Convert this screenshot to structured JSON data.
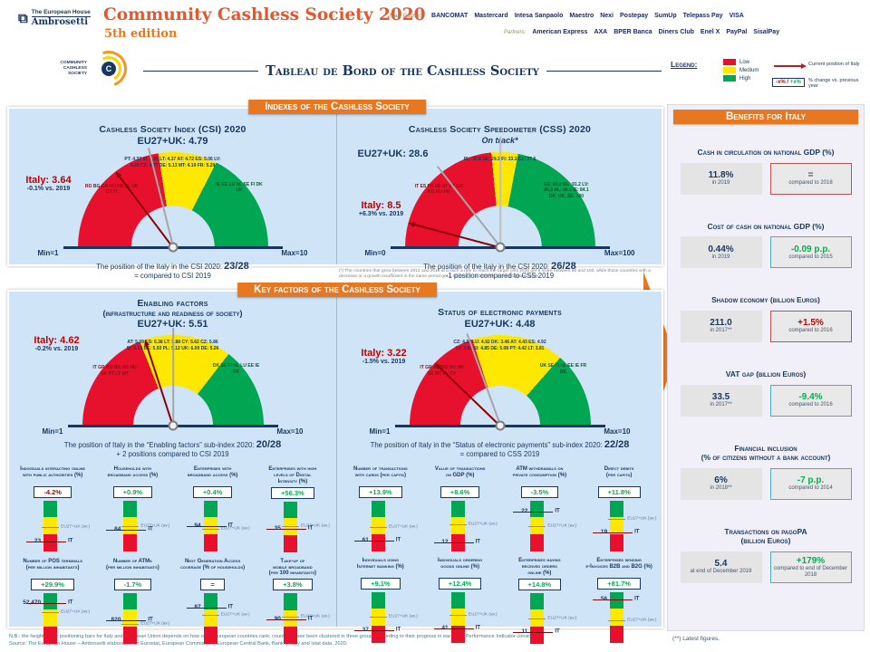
{
  "header": {
    "eha_line1": "The European House",
    "eha_line2": "Ambrosetti",
    "title": "Community Cashless Society 2020",
    "edition": "5th edition",
    "main_partners_label": "Main Partners:",
    "main_partners": [
      "BANCOMAT",
      "Mastercard",
      "Intesa Sanpaolo",
      "Maestro",
      "Nexi",
      "Postepay",
      "SumUp",
      "Telepass Pay",
      "VISA"
    ],
    "partners_label": "Partners:",
    "partners": [
      "American Express",
      "AXA",
      "BPER Banca",
      "Diners Club",
      "Enel X",
      "PayPal",
      "SisalPay"
    ],
    "ccs_logo_text": "Community Cashless Society",
    "ccs_logo_letter": "C",
    "banner": "Tableau de Bord of the Cashless Society"
  },
  "legend": {
    "title": "Legend:",
    "items": [
      {
        "label": "Low",
        "color": "#E8112D"
      },
      {
        "label": "Medium",
        "color": "#FFE800"
      },
      {
        "label": "High",
        "color": "#00A651"
      }
    ],
    "arrow_label": "Current position of Italy",
    "change_neg": "-x%",
    "change_sep": " / ",
    "change_pos": "+x%",
    "change_label": "% change vs. previous year"
  },
  "sections": {
    "indexes_title": "Indexes of the Cashless Society",
    "keyfactors_title": "Key factors of the Cashless Society",
    "benefits_title": "Benefits for Italy"
  },
  "colors": {
    "red": "#E8112D",
    "yellow": "#FFE800",
    "green": "#00A651",
    "navy": "#17375E",
    "italy_red": "#C00000",
    "pos_green": "#00B050",
    "orange": "#E87722"
  },
  "gauges": {
    "csi": {
      "t1": "Cashless Society Index (CSI) 2020",
      "t2": "",
      "eu_label": "EU27+UK: 4.79",
      "italy_label": "Italy: 3.64",
      "italy_change": "-0.1% vs. 2019",
      "min": "Min=1",
      "max": "Max=10",
      "pos_text": "The position of the Italy in the CSI 2020:",
      "pos_rank": "23/28",
      "cmp_text": "= compared to CSI 2019",
      "italy_rot": -127,
      "eu_rot": -104,
      "seg": {
        "red": 0.45,
        "yellow": 0.2,
        "green": 0.35
      },
      "labels": {
        "yellow": [
          "PT: 4.37",
          "SI: 4.95",
          "LT: 4.37",
          "AT: 4.72",
          "ES: 5.06",
          "LV: 4.29",
          "CZ: 4.77",
          "DE: 5.13",
          "MT: 4.19",
          "FR: 5.29"
        ],
        "red": [
          "RO",
          "BG",
          "GR",
          "HU",
          "HR",
          "PL",
          "SK",
          "CY",
          "IT"
        ],
        "green": [
          "IE",
          "EE",
          "LU",
          "NL",
          "SE",
          "FI",
          "DK",
          "UK"
        ]
      }
    },
    "css": {
      "t1": "Cashless Society Speedometer (CSS) 2020",
      "t2": "",
      "on_track": "On track*",
      "eu_label": "EU27+UK: 28.6",
      "italy_label": "Italy: 8.5",
      "italy_change": "+6.3% vs. 2019",
      "min": "Min=0",
      "max": "Max=100",
      "pos_text": "The position of the Italy in the CSI 2020:",
      "pos_rank": "26/28",
      "cmp_text": "-1 position compared to CSS 2019",
      "italy_rot": -165,
      "eu_rot": -128,
      "track_rot": -90,
      "seg": {
        "red": 0.47,
        "yellow": 0.09,
        "green": 0.44
      },
      "labels": {
        "yellow": [
          "PL: 30.8",
          "SE: 29.3",
          "FI: 33.3",
          "CZ: 37.6"
        ],
        "red": [
          "IT",
          "ES",
          "FR",
          "DE",
          "AT",
          "PT",
          "GR",
          "RO",
          "HU",
          "HR"
        ],
        "green": [
          "EE: 80.2",
          "BE: 91.2",
          "LV: 86.3",
          "NL: 86.4",
          "IE: 84.1",
          "DK, UK, SE: 100"
        ]
      }
    },
    "enabling": {
      "t1": "Enabling factors",
      "t2": "(infrastructure and readiness of society)",
      "eu_label": "EU27+UK: 5.51",
      "italy_label": "Italy: 4.62",
      "italy_change": "-0.2% vs. 2019",
      "min": "Min=1",
      "max": "Max=10",
      "pos_text": "The position of Italy in the “Enabling factors” sub-index 2020:",
      "pos_rank": "20/28",
      "cmp_text": "+ 2 positions compared to CSI 2019",
      "italy_rot": -108,
      "eu_rot": -90,
      "seg": {
        "red": 0.38,
        "yellow": 0.33,
        "green": 0.29
      },
      "labels": {
        "yellow": [
          "AT: 5.39",
          "ES: 5.38",
          "LT: 5.88",
          "CY: 5.62",
          "CZ: 5.86",
          "SI: 5.19",
          "BE: 5.93",
          "PL: 5.12",
          "UK: 6.00",
          "DE: 5.26"
        ],
        "red": [
          "IT",
          "GR",
          "RO",
          "BG",
          "HR",
          "HU",
          "SK",
          "PT",
          "LV",
          "MT"
        ],
        "green": [
          "DK",
          "SE",
          "FI",
          "NL",
          "LU",
          "EE",
          "IE",
          "FR"
        ]
      }
    },
    "payments": {
      "t1": "Status of electronic payments",
      "t2": "",
      "eu_label": "EU27+UK: 4.48",
      "italy_label": "Italy: 3.22",
      "italy_change": "-1.5% vs. 2019",
      "min": "Min=1",
      "max": "Max=10",
      "pos_text": "The position of Italy in the “Status of electronic payments” sub-index 2020:",
      "pos_rank": "22/28",
      "cmp_text": "= compared to CSS 2019",
      "italy_rot": -136,
      "eu_rot": -110,
      "seg": {
        "red": 0.4,
        "yellow": 0.33,
        "green": 0.27
      },
      "labels": {
        "yellow": [
          "CZ: 4.35",
          "LU: 4.92",
          "DK: 3.46",
          "AT: 4.43",
          "ES: 4.92",
          "LV: 3.82",
          "SI: 4.85",
          "DE: 5.08",
          "PT: 4.42",
          "LT: 3.81"
        ],
        "red": [
          "IT",
          "GR",
          "RO",
          "BG",
          "HU",
          "HR",
          "SK",
          "MT",
          "PL",
          "CY"
        ],
        "green": [
          "UK",
          "SE",
          "FI",
          "NL",
          "EE",
          "IE",
          "FR",
          "BE"
        ]
      }
    }
  },
  "kpis": {
    "eu_label": "EU27+UK (av.)",
    "it_label": "IT",
    "left": [
      {
        "t": [
          "Individuals interacting online",
          "with public authorities (%)"
        ],
        "c": "-4.2%",
        "cc": "red",
        "it": "23",
        "ip": 80,
        "ep": 52
      },
      {
        "t": [
          "Households with",
          "broadband access (%)"
        ],
        "c": "+0.9%",
        "cc": "green",
        "it": "84",
        "ip": 58,
        "ep": 50
      },
      {
        "t": [
          "Enterprises with",
          "broadband access (%)"
        ],
        "c": "+0.4%",
        "cc": "green",
        "it": "94",
        "ip": 50,
        "ep": 56
      },
      {
        "t": [
          "Enterprises with high",
          "levels of Digital",
          "Intensity (%)"
        ],
        "c": "+56.3%",
        "cc": "green",
        "it": "35",
        "ip": 55,
        "ep": 48
      },
      {
        "t": [
          "Number of POS terminals",
          "(per million inhabitants)"
        ],
        "c": "+29.9%",
        "cc": "green",
        "it": "52,470",
        "ip": 20,
        "ep": 38
      },
      {
        "t": [
          "Number of ATMs",
          "(per million inhabitants)"
        ],
        "c": "-1.7%",
        "cc": "green",
        "it": "820",
        "ip": 55,
        "ep": 62
      },
      {
        "t": [
          "Next Generation Access",
          "coverage (% of households)"
        ],
        "c": "=",
        "cc": "navy",
        "it": "87",
        "ip": 30,
        "ep": 44
      },
      {
        "t": [
          "Take-up of",
          "mobile broadband",
          "(per 100 inhabitants)"
        ],
        "c": "+3.8%",
        "cc": "green",
        "it": "90",
        "ip": 52,
        "ep": 46
      }
    ],
    "right": [
      {
        "t": [
          "Number of transactions",
          "with cards (per capita)"
        ],
        "c": "+13.9%",
        "cc": "green",
        "it": "61",
        "ip": 78,
        "ep": 52
      },
      {
        "t": [
          "Value of transactions",
          "on GDP (%)"
        ],
        "c": "+8.6%",
        "cc": "green",
        "it": "12",
        "ip": 82,
        "ep": 46
      },
      {
        "t": [
          "ATM withdrawals on",
          "private consumption (%)"
        ],
        "c": "-3.5%",
        "cc": "green",
        "it": "22",
        "ip": 22,
        "ep": 50
      },
      {
        "t": [
          "Direct debits",
          "(per capita)"
        ],
        "c": "+11.8%",
        "cc": "green",
        "it": "19",
        "ip": 62,
        "ep": 36
      },
      {
        "t": [
          "Individuals using",
          "Internet banking (%)"
        ],
        "c": "+9.1%",
        "cc": "green",
        "it": "37",
        "ip": 75,
        "ep": 48
      },
      {
        "t": [
          "Individuals ordering",
          "goods online (%)"
        ],
        "c": "+12.4%",
        "cc": "green",
        "it": "41",
        "ip": 72,
        "ep": 45
      },
      {
        "t": [
          "Enterprises having",
          "received orders",
          "online (%)"
        ],
        "c": "+14.8%",
        "cc": "green",
        "it": "11",
        "ip": 78,
        "ep": 50
      },
      {
        "t": [
          "Enterprises sending",
          "e-Invoices B2B and B2G (%)"
        ],
        "c": "+81.7%",
        "cc": "green",
        "it": "56",
        "ip": 15,
        "ep": 55
      }
    ]
  },
  "benefits": {
    "items": [
      {
        "title": "Cash in circulation on national GDP (%)",
        "title2": "",
        "v": "11.8%",
        "vs": "in 2019",
        "d": "=",
        "ds": "compared to 2018",
        "dcol": "#44546A",
        "dbor": "#C0504D"
      },
      {
        "title": "Cost of cash on national GDP (%)",
        "title2": "",
        "v": "0.44%",
        "vs": "in 2019",
        "d": "-0.09 p.p.",
        "ds": "compared to 2015",
        "dcol": "#00B050",
        "dbor": "#4BACC6"
      },
      {
        "title": "Shadow economy (billion Euros)",
        "title2": "",
        "v": "211.0",
        "vs": "in 2017**",
        "d": "+1.5%",
        "ds": "compared to 2016",
        "dcol": "#C00000",
        "dbor": "#C0504D"
      },
      {
        "title": "VAT gap (billion Euros)",
        "title2": "",
        "v": "33.5",
        "vs": "in 2017**",
        "d": "-9.4%",
        "ds": "compared to 2016",
        "dcol": "#00B050",
        "dbor": "#4BACC6"
      },
      {
        "title": "Financial inclusion",
        "title2": "(% of citizens without a bank account)",
        "v": "6%",
        "vs": "in 2018**",
        "d": "-7 p.p.",
        "ds": "compared to 2014",
        "dcol": "#00B050",
        "dbor": "#4BACC6"
      },
      {
        "title": "Transactions on pagoPA",
        "title2": "(billion Euros)",
        "v": "5.4",
        "vs": "at end of December 2019",
        "d": "+179%",
        "ds": "compared to end of December 2018",
        "dcol": "#00B050",
        "dbor": "#4BACC6"
      }
    ],
    "footnote": "(**) Latest figures."
  },
  "footnotes": {
    "css_star": "(*) The countries that grew between 2012 and 2016 at a such a rate to reach the target until 2025 get a score between 50 and 100, while those countries with a decrease or a growth insufficient in the same period get a score of 0 or between 1 and 50 respectively."
  },
  "footer": {
    "nb": "N.B.: the height of the positioning bars for Italy and European Union depends on how other European countries rank; countries have been clustered in three groups according to their progress in each Key Performance Indicator considered.",
    "source": "Source: The European House – Ambrosetti elaboration on Eurostat, European Commission, European Central Bank, Bank of Italy and Istat data, 2020."
  },
  "chart_data": [
    {
      "type": "gauge",
      "title": "Cashless Society Index (CSI) 2020",
      "range": [
        1,
        10
      ],
      "eu27_uk": 4.79,
      "italy": 3.64,
      "italy_change_pct_vs_2019": -0.1,
      "italy_rank": "23/28",
      "rank_change": "= compared to CSI 2019"
    },
    {
      "type": "gauge",
      "title": "Cashless Society Speedometer (CSS) 2020",
      "range": [
        0,
        100
      ],
      "eu27_uk": 28.6,
      "italy": 8.5,
      "italy_change_pct_vs_2019": 6.3,
      "italy_rank": "26/28",
      "rank_change": "-1 position compared to CSS 2019"
    },
    {
      "type": "gauge",
      "title": "Enabling factors (infrastructure and readiness of society)",
      "range": [
        1,
        10
      ],
      "eu27_uk": 5.51,
      "italy": 4.62,
      "italy_change_pct_vs_2019": -0.2,
      "italy_rank": "20/28",
      "rank_change": "+2 positions compared to CSI 2019"
    },
    {
      "type": "gauge",
      "title": "Status of electronic payments",
      "range": [
        1,
        10
      ],
      "eu27_uk": 4.48,
      "italy": 3.22,
      "italy_change_pct_vs_2019": -1.5,
      "italy_rank": "22/28",
      "rank_change": "= compared to CSS 2019"
    },
    {
      "type": "bar",
      "title": "Enabling factors KPIs — Italy % change vs previous year",
      "categories": [
        "Individuals interacting online with public authorities (%)",
        "Households with broadband access (%)",
        "Enterprises with broadband access (%)",
        "Enterprises with high levels of Digital Intensity (%)",
        "Number of POS terminals (per million inhabitants)",
        "Number of ATMs (per million inhabitants)",
        "Next Generation Access coverage (% of households)",
        "Take-up of mobile broadband (per 100 inhabitants)"
      ],
      "values": [
        -4.2,
        0.9,
        0.4,
        56.3,
        29.9,
        -1.7,
        0,
        3.8
      ],
      "italy_levels": [
        "23",
        "84",
        "94",
        "35",
        "52,470",
        "820",
        "87",
        "90"
      ]
    },
    {
      "type": "bar",
      "title": "Status of electronic payments KPIs — Italy % change vs previous year",
      "categories": [
        "Number of transactions with cards (per capita)",
        "Value of transactions on GDP (%)",
        "ATM withdrawals on private consumption (%)",
        "Direct debits (per capita)",
        "Individuals using Internet banking (%)",
        "Individuals ordering goods online (%)",
        "Enterprises having received orders online (%)",
        "Enterprises sending e-Invoices B2B and B2G (%)"
      ],
      "values": [
        13.9,
        8.6,
        -3.5,
        11.8,
        9.1,
        12.4,
        14.8,
        81.7
      ],
      "italy_levels": [
        "61",
        "12",
        "22",
        "19",
        "37",
        "41",
        "11",
        "56"
      ]
    },
    {
      "type": "table",
      "title": "Benefits for Italy",
      "rows": [
        [
          "Cash in circulation on national GDP (%)",
          "11.8% in 2019",
          "= compared to 2018"
        ],
        [
          "Cost of cash on national GDP (%)",
          "0.44% in 2019",
          "-0.09 p.p. compared to 2015"
        ],
        [
          "Shadow economy (billion Euros)",
          "211.0 in 2017**",
          "+1.5% compared to 2016"
        ],
        [
          "VAT gap (billion Euros)",
          "33.5 in 2017**",
          "-9.4% compared to 2016"
        ],
        [
          "Financial inclusion (% of citizens without a bank account)",
          "6% in 2018**",
          "-7 p.p. compared to 2014"
        ],
        [
          "Transactions on pagoPA (billion Euros)",
          "5.4 at end of December 2019",
          "+179% compared to end of December 2018"
        ]
      ]
    }
  ]
}
